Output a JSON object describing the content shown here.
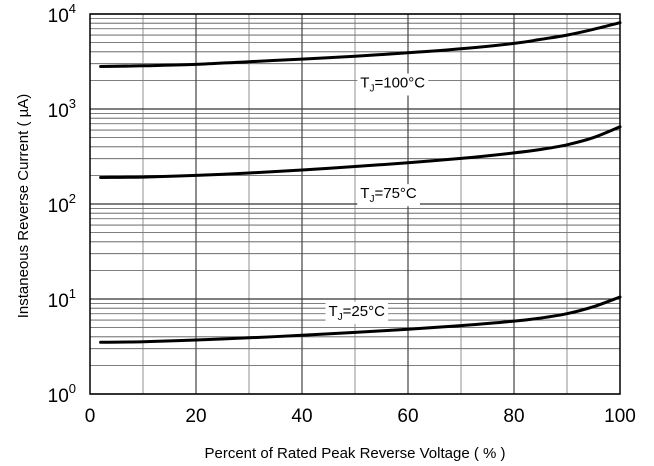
{
  "chart_data": {
    "type": "line",
    "xlabel": "Percent of Rated Peak Reverse Voltage ( % )",
    "ylabel": "Instaneous Reverse Current ( µA)",
    "xlim": [
      0,
      100
    ],
    "ylim": [
      1,
      10000
    ],
    "yscale": "log",
    "grid": true,
    "x_ticks": [
      {
        "value": 0,
        "label": "0"
      },
      {
        "value": 20,
        "label": "20"
      },
      {
        "value": 40,
        "label": "40"
      },
      {
        "value": 60,
        "label": "60"
      },
      {
        "value": 80,
        "label": "80"
      },
      {
        "value": 100,
        "label": "100"
      }
    ],
    "y_ticks": [
      {
        "value": 1,
        "base": "10",
        "exp": "0"
      },
      {
        "value": 10,
        "base": "10",
        "exp": "1"
      },
      {
        "value": 100,
        "base": "10",
        "exp": "2"
      },
      {
        "value": 1000,
        "base": "10",
        "exp": "3"
      },
      {
        "value": 10000,
        "base": "10",
        "exp": "4"
      }
    ],
    "series": [
      {
        "label_main": "T",
        "label_sub": "J",
        "label_rest": "=100°C",
        "label_at": {
          "x": 51,
          "y": 1900
        },
        "points": [
          [
            2,
            2800
          ],
          [
            10,
            2850
          ],
          [
            20,
            2950
          ],
          [
            30,
            3150
          ],
          [
            40,
            3350
          ],
          [
            50,
            3600
          ],
          [
            60,
            3900
          ],
          [
            70,
            4300
          ],
          [
            80,
            4900
          ],
          [
            85,
            5400
          ],
          [
            90,
            6000
          ],
          [
            95,
            6900
          ],
          [
            100,
            8100
          ]
        ]
      },
      {
        "label_main": "T",
        "label_sub": "J",
        "label_rest": "=75°C",
        "label_at": {
          "x": 51,
          "y": 130
        },
        "points": [
          [
            2,
            190
          ],
          [
            10,
            192
          ],
          [
            20,
            200
          ],
          [
            30,
            212
          ],
          [
            40,
            228
          ],
          [
            50,
            248
          ],
          [
            60,
            272
          ],
          [
            70,
            302
          ],
          [
            80,
            345
          ],
          [
            85,
            375
          ],
          [
            90,
            420
          ],
          [
            95,
            500
          ],
          [
            100,
            650
          ]
        ]
      },
      {
        "label_main": "T",
        "label_sub": "J",
        "label_rest": "=25°C",
        "label_at": {
          "x": 45,
          "y": 7.5
        },
        "points": [
          [
            2,
            3.5
          ],
          [
            10,
            3.55
          ],
          [
            20,
            3.7
          ],
          [
            30,
            3.9
          ],
          [
            40,
            4.15
          ],
          [
            50,
            4.45
          ],
          [
            60,
            4.8
          ],
          [
            70,
            5.25
          ],
          [
            80,
            5.85
          ],
          [
            85,
            6.3
          ],
          [
            90,
            7.0
          ],
          [
            95,
            8.3
          ],
          [
            100,
            10.5
          ]
        ]
      }
    ]
  }
}
